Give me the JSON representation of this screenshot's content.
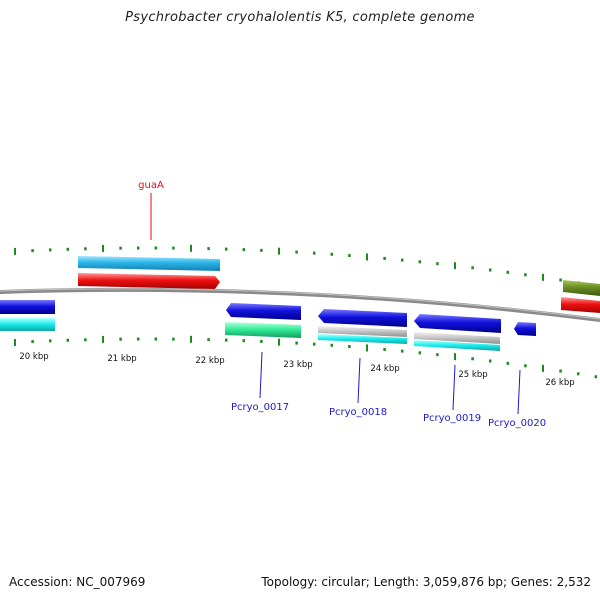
{
  "title": "Psychrobacter cryohalolentis K5, complete genome",
  "footer": {
    "accession": "Accession: NC_007969",
    "summary": "Topology: circular; Length: 3,059,876 bp; Genes: 2,532"
  },
  "colors": {
    "backbone": "#8a8a8a",
    "gc_ticks": "#1e8a1e",
    "forward_gene": "#2bb4e8",
    "forward_cds": "#ee1111",
    "reverse_gene": "#1111dd",
    "reverse_cds_cyan": "#22eeee",
    "reverse_cds_green": "#33ee99",
    "reverse_cds_gray": "#c8c8c8",
    "olive": "#6b8e23",
    "label_blue": "#1a1acc",
    "label_red": "#dd1111"
  },
  "scale": [
    {
      "label": "20 kbp"
    },
    {
      "label": "21 kbp"
    },
    {
      "label": "22 kbp"
    },
    {
      "label": "23 kbp"
    },
    {
      "label": "24 kbp"
    },
    {
      "label": "25 kbp"
    },
    {
      "label": "26 kbp"
    }
  ],
  "gene_labels": [
    {
      "text": "guaA",
      "color_key": "label_red"
    },
    {
      "text": "Pcryo_0017",
      "color_key": "label_blue"
    },
    {
      "text": "Pcryo_0018",
      "color_key": "label_blue"
    },
    {
      "text": "Pcryo_0019",
      "color_key": "label_blue"
    },
    {
      "text": "Pcryo_0020",
      "color_key": "label_blue"
    }
  ]
}
